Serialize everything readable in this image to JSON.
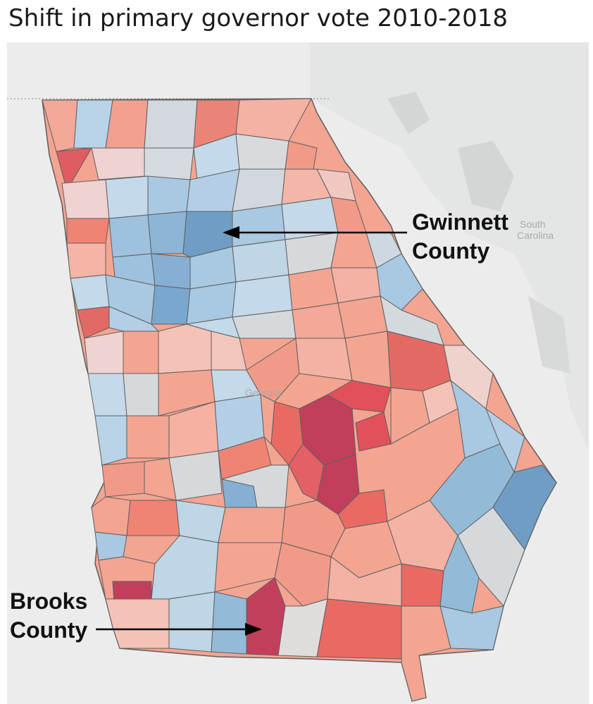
{
  "title": "Shift in primary governor vote 2010-2018",
  "basemap": {
    "neighbor_state_line1": "South",
    "neighbor_state_line2": "Carolina",
    "state_label": "Georgia"
  },
  "annotations": {
    "gwinnett_line1": "Gwinnett",
    "gwinnett_line2": "County",
    "brooks_line1": "Brooks",
    "brooks_line2": "County"
  },
  "colors": {
    "background_land": "#e8e9e9",
    "water": "#d9dada",
    "border": "#5f5f5f",
    "strong_red": "#c23f5b",
    "red": "#e36a64",
    "light_red": "#f3a592",
    "pale_red": "#f4c2b6",
    "neutral": "#d6d9dc",
    "light_blue": "#bed6e6",
    "blue": "#93bbd8",
    "dark_blue": "#6f9dc4"
  }
}
